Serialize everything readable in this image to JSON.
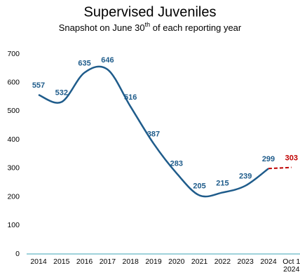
{
  "chart_data": {
    "type": "line",
    "title": "Supervised Juveniles",
    "subtitle": [
      "Snapshot on June 30",
      "th",
      " of each reporting year"
    ],
    "categories": [
      "2014",
      "2015",
      "2016",
      "2017",
      "2018",
      "2019",
      "2020",
      "2021",
      "2022",
      "2023",
      "2024",
      "Oct 1\n2024"
    ],
    "values": [
      557,
      532,
      635,
      646,
      516,
      387,
      283,
      205,
      215,
      239,
      299,
      303
    ],
    "color": "#1f5c8b",
    "last_color": "#c00000",
    "last_dashed": true,
    "ylim": [
      0,
      700
    ],
    "yticks": [
      0,
      100,
      200,
      300,
      400,
      500,
      600,
      700
    ],
    "grid": false
  }
}
